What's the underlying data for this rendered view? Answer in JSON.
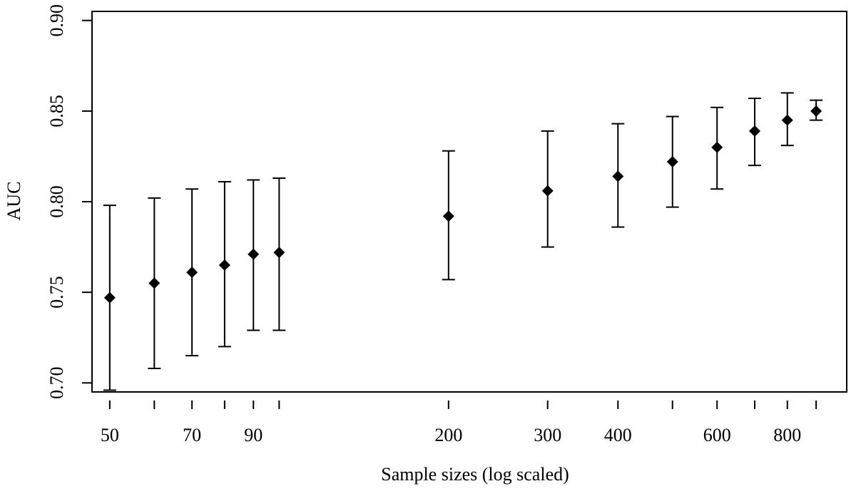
{
  "chart_data": {
    "type": "scatter",
    "title": "",
    "xlabel": "Sample sizes (log scaled)",
    "ylabel": "AUC",
    "x_scale": "log",
    "xlim": [
      46.5,
      1020
    ],
    "ylim": [
      0.695,
      0.905
    ],
    "x_ticks": [
      50,
      60,
      70,
      80,
      90,
      100,
      200,
      300,
      400,
      500,
      600,
      700,
      800,
      900
    ],
    "x_tick_labels": [
      "50",
      "",
      "70",
      "",
      "90",
      "",
      "200",
      "300",
      "400",
      "",
      "600",
      "",
      "800",
      ""
    ],
    "y_ticks": [
      0.7,
      0.75,
      0.8,
      0.85,
      0.9
    ],
    "y_tick_labels": [
      "0.70",
      "0.75",
      "0.80",
      "0.85",
      "0.90"
    ],
    "grid": false,
    "series": [
      {
        "points": [
          {
            "x": 50,
            "y": 0.747,
            "lower": 0.696,
            "upper": 0.798
          },
          {
            "x": 60,
            "y": 0.755,
            "lower": 0.708,
            "upper": 0.802
          },
          {
            "x": 70,
            "y": 0.761,
            "lower": 0.715,
            "upper": 0.807
          },
          {
            "x": 80,
            "y": 0.765,
            "lower": 0.72,
            "upper": 0.811
          },
          {
            "x": 90,
            "y": 0.771,
            "lower": 0.729,
            "upper": 0.812
          },
          {
            "x": 100,
            "y": 0.772,
            "lower": 0.729,
            "upper": 0.813
          },
          {
            "x": 200,
            "y": 0.792,
            "lower": 0.757,
            "upper": 0.828
          },
          {
            "x": 300,
            "y": 0.806,
            "lower": 0.775,
            "upper": 0.839
          },
          {
            "x": 400,
            "y": 0.814,
            "lower": 0.786,
            "upper": 0.843
          },
          {
            "x": 500,
            "y": 0.822,
            "lower": 0.797,
            "upper": 0.847
          },
          {
            "x": 600,
            "y": 0.83,
            "lower": 0.807,
            "upper": 0.852
          },
          {
            "x": 700,
            "y": 0.839,
            "lower": 0.82,
            "upper": 0.857
          },
          {
            "x": 800,
            "y": 0.845,
            "lower": 0.831,
            "upper": 0.86
          },
          {
            "x": 900,
            "y": 0.85,
            "lower": 0.845,
            "upper": 0.856
          }
        ]
      }
    ]
  }
}
